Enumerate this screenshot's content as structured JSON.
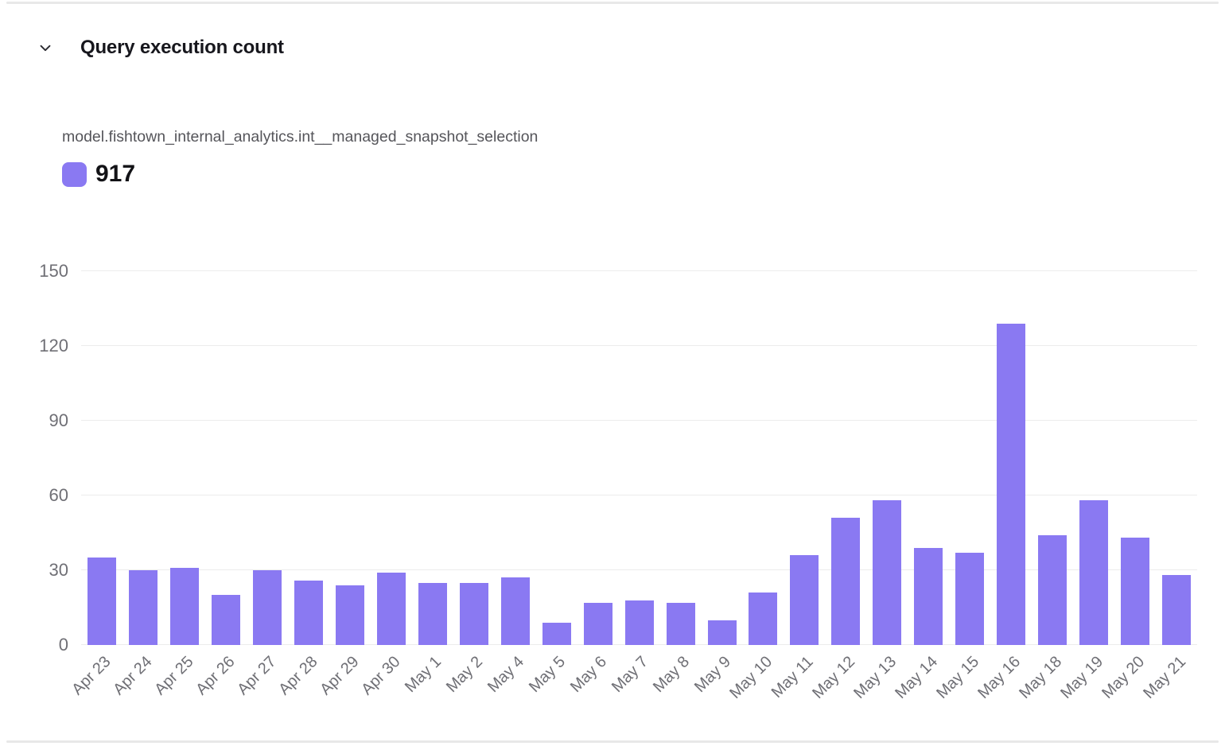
{
  "panel": {
    "title": "Query execution count"
  },
  "series": {
    "label": "model.fishtown_internal_analytics.int__managed_snapshot_selection",
    "total": "917"
  },
  "chart_data": {
    "type": "bar",
    "title": "Query execution count",
    "categories": [
      "Apr 23",
      "Apr 24",
      "Apr 25",
      "Apr 26",
      "Apr 27",
      "Apr 28",
      "Apr 29",
      "Apr 30",
      "May 1",
      "May 2",
      "May 4",
      "May 5",
      "May 6",
      "May 7",
      "May 8",
      "May 9",
      "May 10",
      "May 11",
      "May 12",
      "May 13",
      "May 14",
      "May 15",
      "May 16",
      "May 18",
      "May 19",
      "May 20",
      "May 21"
    ],
    "series": [
      {
        "name": "model.fishtown_internal_analytics.int__managed_snapshot_selection",
        "total": 917,
        "values": [
          35,
          30,
          31,
          20,
          30,
          26,
          24,
          29,
          25,
          25,
          27,
          9,
          17,
          18,
          17,
          10,
          21,
          36,
          51,
          58,
          39,
          37,
          129,
          44,
          58,
          43,
          28
        ]
      }
    ],
    "xlabel": "",
    "ylabel": "",
    "ylim": [
      0,
      150
    ],
    "yticks": [
      0,
      30,
      60,
      90,
      120,
      150
    ],
    "grid": true,
    "legend_position": "top-left",
    "x_label_rotation": -45
  },
  "colors": {
    "bar": "#8A79F2",
    "title_text": "#17171d",
    "subtitle_text": "#55555a",
    "tick_text": "#6f6f75",
    "gridline": "#ececec",
    "divider": "#e8e8e8"
  }
}
